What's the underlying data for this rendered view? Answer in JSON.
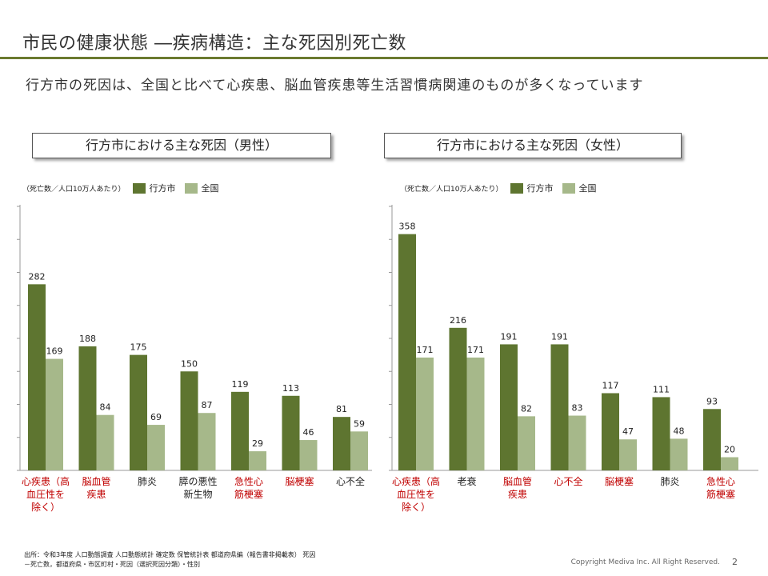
{
  "title": "市民の健康状態 ―疾病構造：主な死因別死亡数",
  "subtitle": "行方市の死因は、全国と比べて心疾患、脳血管疾患等生活習慣病関連のものが多くなっています",
  "legend": {
    "note": "（死亡数／人口10万人あたり）",
    "series1": "行方市",
    "series2": "全国"
  },
  "colors": {
    "series1": "#5e7530",
    "series2": "#a6b88a",
    "highlight_label": "#c00000",
    "normal_label": "#222222",
    "rule": "#6b7a2f"
  },
  "chart_data": [
    {
      "type": "bar",
      "title": "行方市における主な死因（男性）",
      "categories": [
        "心疾患（高血圧性を除く）",
        "脳血管疾患",
        "肺炎",
        "膵の悪性新生物",
        "急性心筋梗塞",
        "脳梗塞",
        "心不全"
      ],
      "category_lines": [
        [
          "心疾患（高",
          "血圧性を",
          "除く）"
        ],
        [
          "脳血管",
          "疾患"
        ],
        [
          "肺炎"
        ],
        [
          "膵の悪性",
          "新生物"
        ],
        [
          "急性心",
          "筋梗塞"
        ],
        [
          "脳梗塞"
        ],
        [
          "心不全"
        ]
      ],
      "category_highlight": [
        true,
        true,
        false,
        false,
        true,
        true,
        false
      ],
      "series": [
        {
          "name": "行方市",
          "values": [
            282,
            188,
            175,
            150,
            119,
            113,
            81
          ]
        },
        {
          "name": "全国",
          "values": [
            169,
            84,
            69,
            87,
            29,
            46,
            59
          ]
        }
      ],
      "ylim": [
        0,
        400
      ],
      "grid": false
    },
    {
      "type": "bar",
      "title": "行方市における主な死因（女性）",
      "categories": [
        "心疾患（高血圧性を除く）",
        "老衰",
        "脳血管疾患",
        "心不全",
        "脳梗塞",
        "肺炎",
        "急性心筋梗塞"
      ],
      "category_lines": [
        [
          "心疾患（高",
          "血圧性を",
          "除く）"
        ],
        [
          "老衰"
        ],
        [
          "脳血管",
          "疾患"
        ],
        [
          "心不全"
        ],
        [
          "脳梗塞"
        ],
        [
          "肺炎"
        ],
        [
          "急性心",
          "筋梗塞"
        ]
      ],
      "category_highlight": [
        true,
        false,
        true,
        true,
        true,
        false,
        true
      ],
      "series": [
        {
          "name": "行方市",
          "values": [
            358,
            216,
            191,
            191,
            117,
            111,
            93
          ]
        },
        {
          "name": "全国",
          "values": [
            171,
            171,
            82,
            83,
            47,
            48,
            20
          ]
        }
      ],
      "ylim": [
        0,
        400
      ],
      "grid": false
    }
  ],
  "source": {
    "line1": "出所：令和3年度 人口動態調査 人口動態統計 確定数 保管統計表 都道府県編（報告書非掲載表） 死因",
    "line2": "－死亡数，都道府県・市区町村・死因（選択死因分類）・性別"
  },
  "copyright": "Copyright Mediva Inc. All Right Reserved.",
  "page_number": "2"
}
